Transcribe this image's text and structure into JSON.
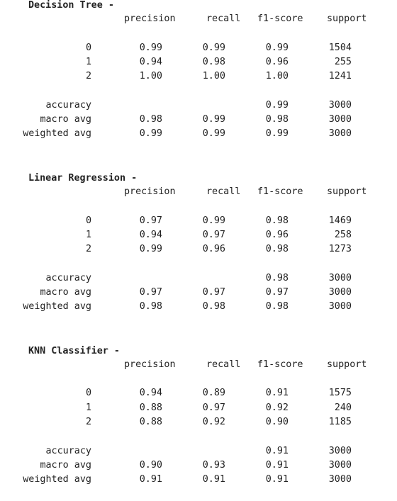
{
  "reports": [
    {
      "title": "Decision Tree -",
      "columns": [
        "precision",
        "recall",
        "f1-score",
        "support"
      ],
      "class_rows": [
        {
          "label": "0",
          "precision": "0.99",
          "recall": "0.99",
          "f1": "0.99",
          "support": "1504"
        },
        {
          "label": "1",
          "precision": "0.94",
          "recall": "0.98",
          "f1": "0.96",
          "support": "255"
        },
        {
          "label": "2",
          "precision": "1.00",
          "recall": "1.00",
          "f1": "1.00",
          "support": "1241"
        }
      ],
      "summary_rows": [
        {
          "label": "accuracy",
          "precision": "",
          "recall": "",
          "f1": "0.99",
          "support": "3000"
        },
        {
          "label": "macro avg",
          "precision": "0.98",
          "recall": "0.99",
          "f1": "0.98",
          "support": "3000"
        },
        {
          "label": "weighted avg",
          "precision": "0.99",
          "recall": "0.99",
          "f1": "0.99",
          "support": "3000"
        }
      ]
    },
    {
      "title": "Linear Regression -",
      "columns": [
        "precision",
        "recall",
        "f1-score",
        "support"
      ],
      "class_rows": [
        {
          "label": "0",
          "precision": "0.97",
          "recall": "0.99",
          "f1": "0.98",
          "support": "1469"
        },
        {
          "label": "1",
          "precision": "0.94",
          "recall": "0.97",
          "f1": "0.96",
          "support": "258"
        },
        {
          "label": "2",
          "precision": "0.99",
          "recall": "0.96",
          "f1": "0.98",
          "support": "1273"
        }
      ],
      "summary_rows": [
        {
          "label": "accuracy",
          "precision": "",
          "recall": "",
          "f1": "0.98",
          "support": "3000"
        },
        {
          "label": "macro avg",
          "precision": "0.97",
          "recall": "0.97",
          "f1": "0.97",
          "support": "3000"
        },
        {
          "label": "weighted avg",
          "precision": "0.98",
          "recall": "0.98",
          "f1": "0.98",
          "support": "3000"
        }
      ]
    },
    {
      "title": "KNN Classifier -",
      "columns": [
        "precision",
        "recall",
        "f1-score",
        "support"
      ],
      "class_rows": [
        {
          "label": "0",
          "precision": "0.94",
          "recall": "0.89",
          "f1": "0.91",
          "support": "1575"
        },
        {
          "label": "1",
          "precision": "0.88",
          "recall": "0.97",
          "f1": "0.92",
          "support": "240"
        },
        {
          "label": "2",
          "precision": "0.88",
          "recall": "0.92",
          "f1": "0.90",
          "support": "1185"
        }
      ],
      "summary_rows": [
        {
          "label": "accuracy",
          "precision": "",
          "recall": "",
          "f1": "0.91",
          "support": "3000"
        },
        {
          "label": "macro avg",
          "precision": "0.90",
          "recall": "0.93",
          "f1": "0.91",
          "support": "3000"
        },
        {
          "label": "weighted avg",
          "precision": "0.91",
          "recall": "0.91",
          "f1": "0.91",
          "support": "3000"
        }
      ]
    }
  ]
}
